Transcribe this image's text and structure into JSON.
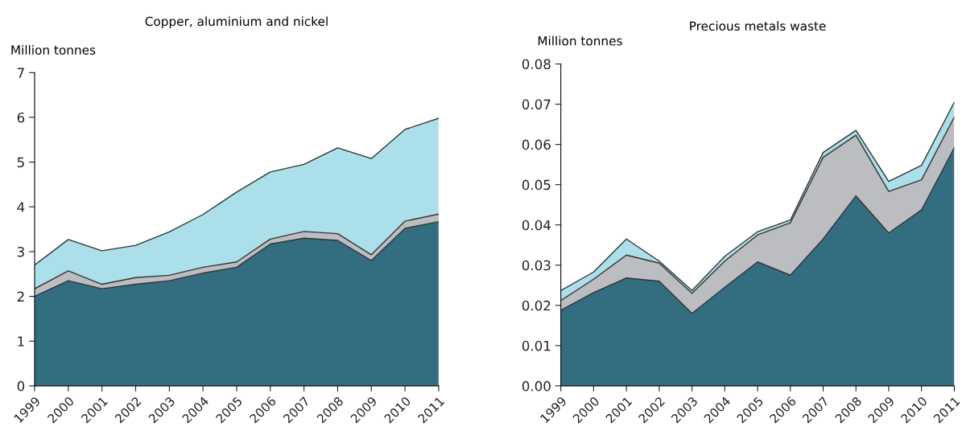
{
  "chart_data": [
    {
      "type": "area",
      "title": "Copper, aluminium and nickel",
      "ylabel": "Million tonnes",
      "stacked": true,
      "x": [
        1999,
        2000,
        2001,
        2002,
        2003,
        2004,
        2005,
        2006,
        2007,
        2008,
        2009,
        2010,
        2011
      ],
      "xlim": [
        1999,
        2011
      ],
      "xticks": [
        1999,
        2000,
        2001,
        2002,
        2003,
        2004,
        2005,
        2006,
        2007,
        2008,
        2009,
        2010,
        2011
      ],
      "ylim": [
        0,
        7
      ],
      "yticks": [
        0,
        1,
        2,
        3,
        4,
        5,
        6,
        7
      ],
      "grid": false,
      "legend": false,
      "series": [
        {
          "color": "#336e80",
          "values": [
            2.0,
            2.35,
            2.17,
            2.27,
            2.35,
            2.52,
            2.65,
            3.17,
            3.3,
            3.25,
            2.8,
            3.52,
            3.67
          ]
        },
        {
          "color": "#bcbdc1",
          "values": [
            0.17,
            0.22,
            0.1,
            0.15,
            0.12,
            0.13,
            0.12,
            0.11,
            0.15,
            0.15,
            0.13,
            0.16,
            0.17
          ]
        },
        {
          "color": "#abdfe9",
          "values": [
            0.53,
            0.7,
            0.75,
            0.72,
            0.97,
            1.18,
            1.56,
            1.5,
            1.5,
            1.92,
            2.15,
            2.05,
            2.14
          ]
        }
      ]
    },
    {
      "type": "area",
      "title": "Precious metals waste",
      "ylabel": "Million tonnes",
      "stacked": true,
      "x": [
        1999,
        2000,
        2001,
        2002,
        2003,
        2004,
        2005,
        2006,
        2007,
        2008,
        2009,
        2010,
        2011
      ],
      "xlim": [
        1999,
        2011
      ],
      "xticks": [
        1999,
        2000,
        2001,
        2002,
        2003,
        2004,
        2005,
        2006,
        2007,
        2008,
        2009,
        2010,
        2011
      ],
      "ylim": [
        0,
        0.08
      ],
      "yticks": [
        {
          "value": 0,
          "label": "0.00"
        },
        {
          "value": 0.01,
          "label": "0.01"
        },
        {
          "value": 0.02,
          "label": "0.02"
        },
        {
          "value": 0.03,
          "label": "0.03"
        },
        {
          "value": 0.04,
          "label": "0.04"
        },
        {
          "value": 0.05,
          "label": "0.05"
        },
        {
          "value": 0.06,
          "label": "0.06"
        },
        {
          "value": 0.07,
          "label": "0.07"
        },
        {
          "value": 0.08,
          "label": "0.08"
        }
      ],
      "grid": false,
      "legend": false,
      "series": [
        {
          "color": "#336e80",
          "values": [
            0.0188,
            0.0232,
            0.0268,
            0.026,
            0.018,
            0.0245,
            0.0308,
            0.0275,
            0.0365,
            0.0472,
            0.038,
            0.0437,
            0.0592
          ]
        },
        {
          "color": "#bcbdc1",
          "values": [
            0.0024,
            0.0033,
            0.0057,
            0.0045,
            0.005,
            0.0065,
            0.0067,
            0.013,
            0.0203,
            0.0151,
            0.0103,
            0.0075,
            0.0076
          ]
        },
        {
          "color": "#abdfe9",
          "values": [
            0.0025,
            0.0018,
            0.004,
            0.0005,
            0.0007,
            0.0012,
            0.0008,
            0.0007,
            0.0012,
            0.0012,
            0.0025,
            0.0036,
            0.0037
          ]
        }
      ]
    }
  ]
}
